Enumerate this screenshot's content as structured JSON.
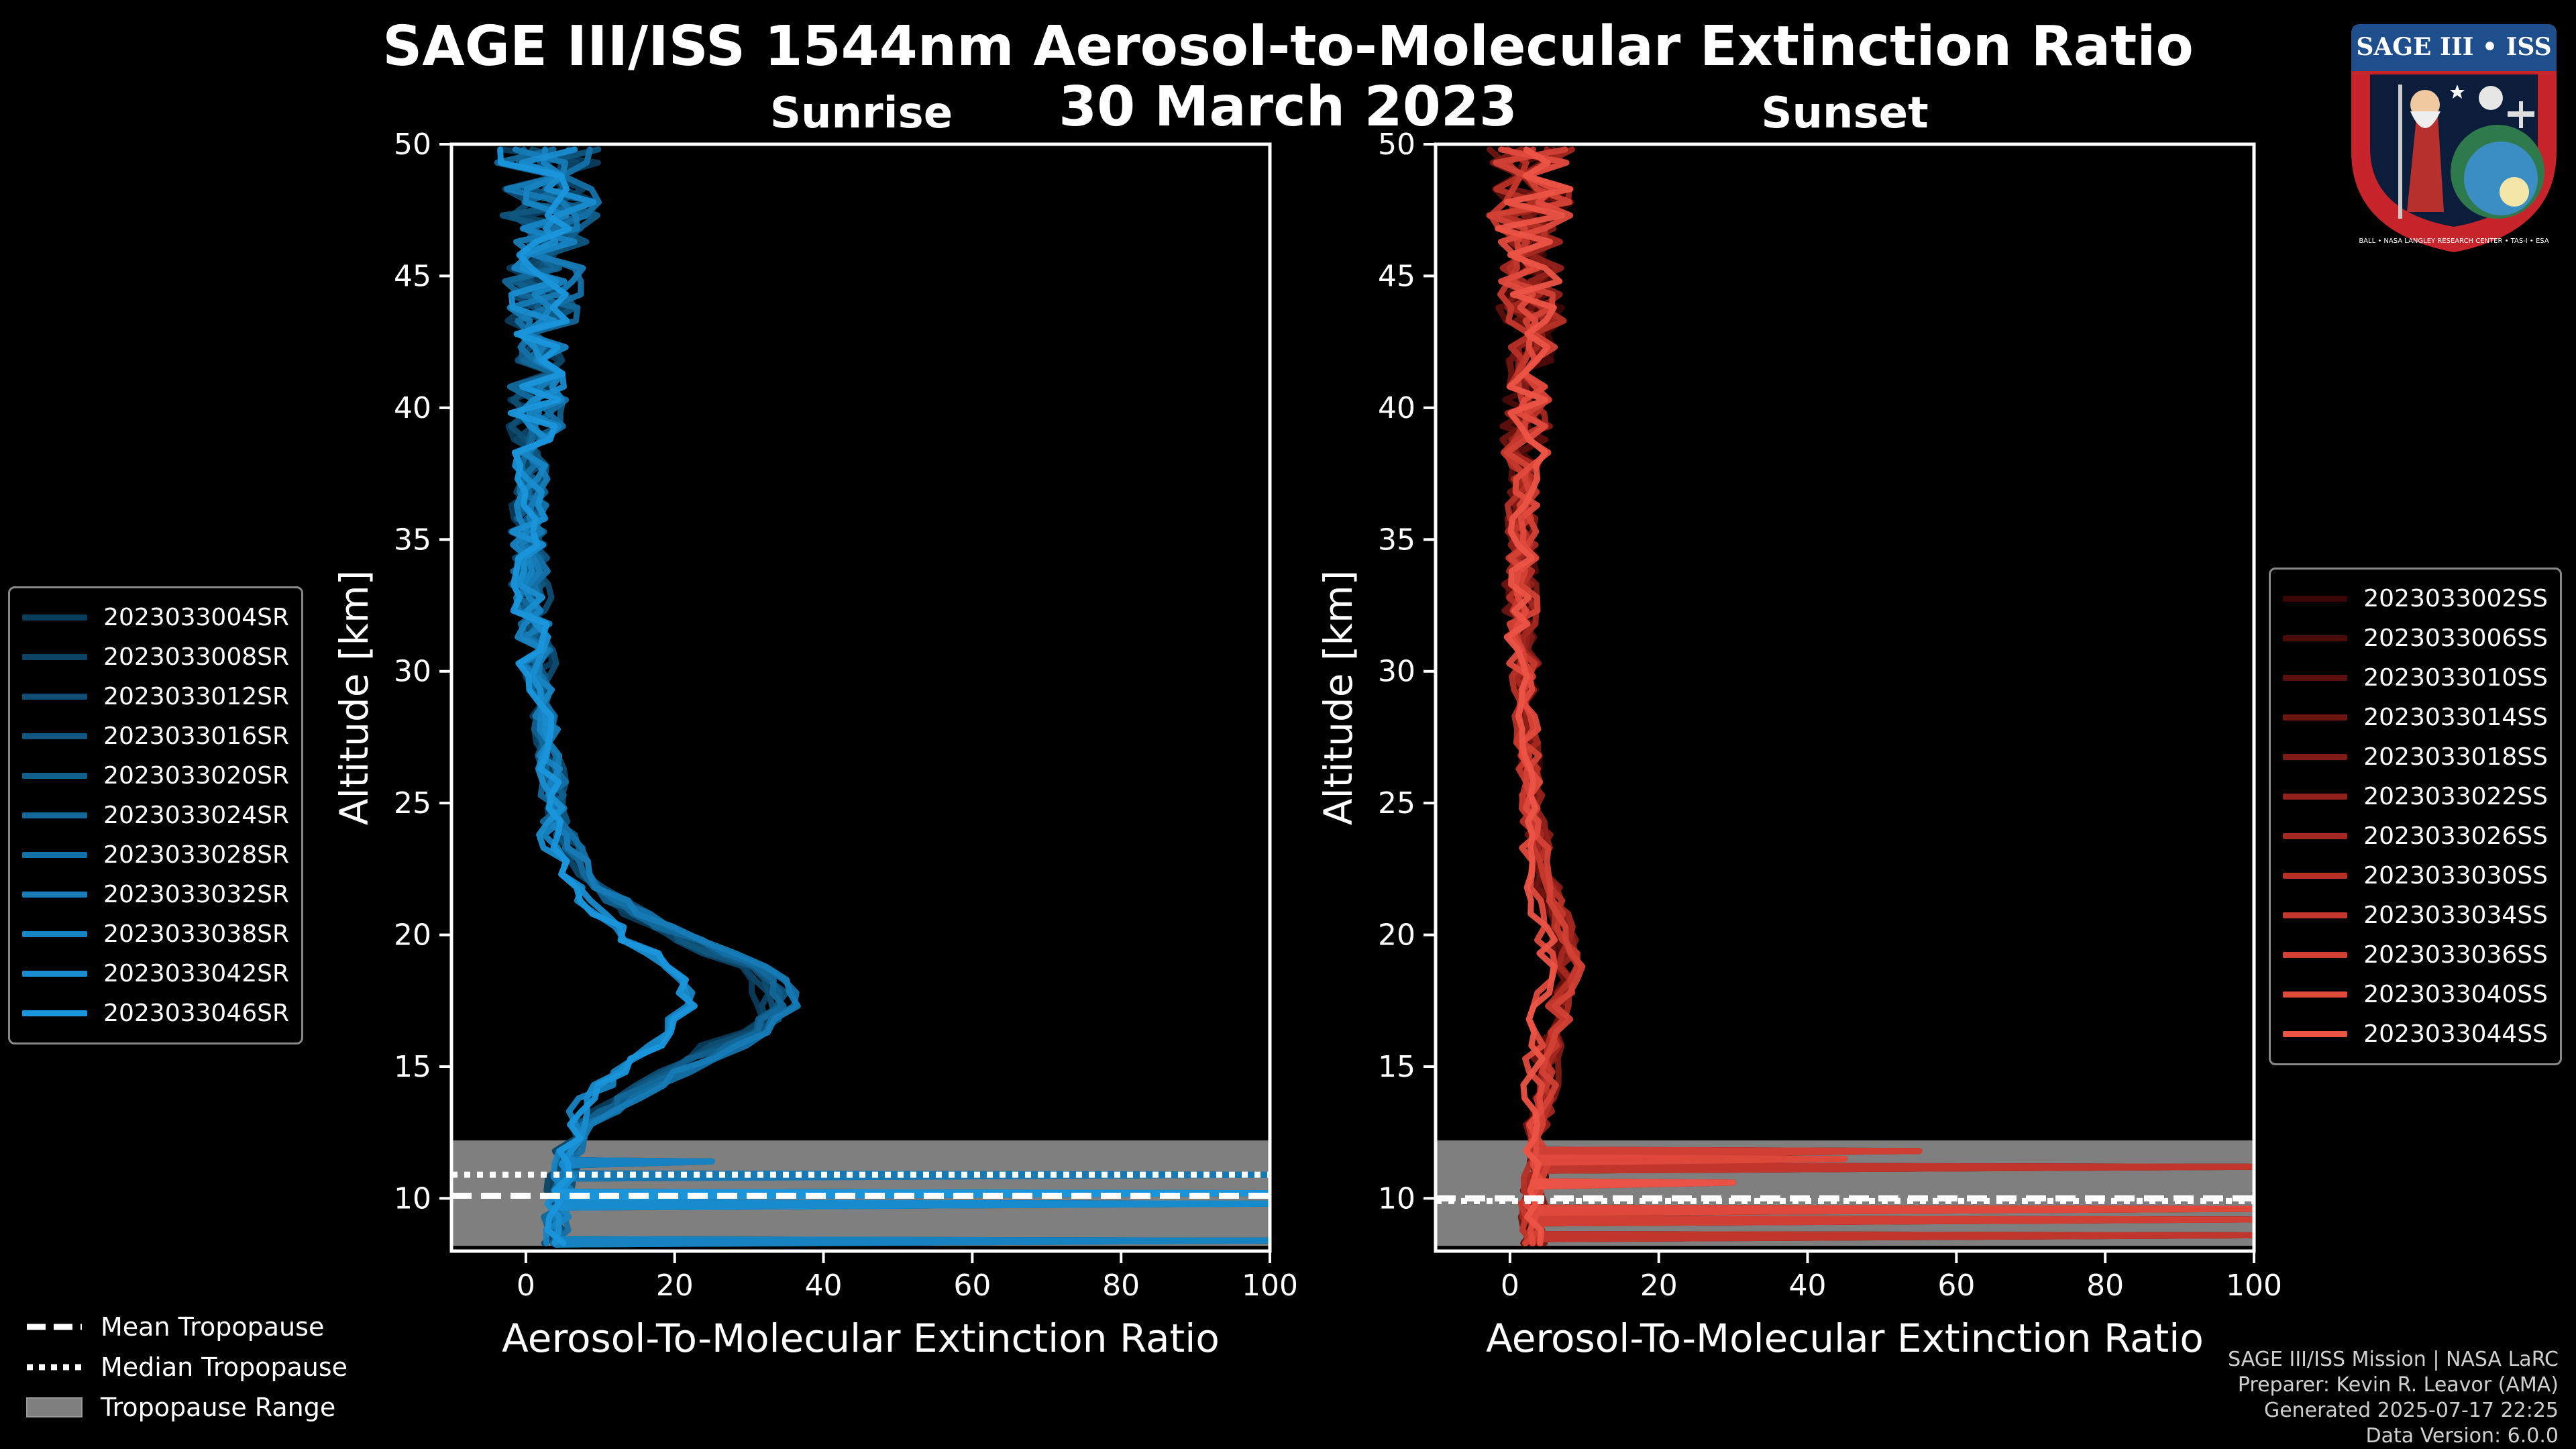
{
  "title": {
    "line1": "SAGE III/ISS 1544nm Aerosol-to-Molecular Extinction Ratio",
    "line2": "30 March 2023"
  },
  "logo": {
    "top_text": "SAGE III • ISS",
    "ring_text": "BALL • NASA LANGLEY RESEARCH CENTER • TAS-I • ESA",
    "ring_color": "#c8242b",
    "banner_color": "#1f4e8c"
  },
  "chart_data": [
    {
      "type": "line",
      "panel": "Sunrise",
      "title": "Sunrise",
      "xlabel": "Aerosol-To-Molecular Extinction Ratio",
      "ylabel": "Altitude [km]",
      "xlim": [
        -10,
        100
      ],
      "ylim": [
        8,
        50
      ],
      "xticks": [
        0,
        20,
        40,
        60,
        80,
        100
      ],
      "yticks": [
        10,
        15,
        20,
        25,
        30,
        35,
        40,
        45,
        50
      ],
      "tropopause_range": [
        8.2,
        12.2
      ],
      "mean_tropopause": 10.1,
      "median_tropopause": 10.9,
      "legend_position": "outside-left",
      "base_profile": [
        [
          8.2,
          4.0
        ],
        [
          9.0,
          4.0
        ],
        [
          10.0,
          4.5
        ],
        [
          11.0,
          5.0
        ],
        [
          12.0,
          6.0
        ],
        [
          13.0,
          8.0
        ],
        [
          14.0,
          12.0
        ],
        [
          15.0,
          17.0
        ],
        [
          15.8,
          22.0
        ],
        [
          16.5,
          26.0
        ],
        [
          17.2,
          28.0
        ],
        [
          18.0,
          28.0
        ],
        [
          18.8,
          25.0
        ],
        [
          19.5,
          20.0
        ],
        [
          20.5,
          14.0
        ],
        [
          21.5,
          9.0
        ],
        [
          22.5,
          6.0
        ],
        [
          24.0,
          4.0
        ],
        [
          26.0,
          3.5
        ],
        [
          28.0,
          2.5
        ],
        [
          30.0,
          1.5
        ],
        [
          32.0,
          1.0
        ],
        [
          34.0,
          0.5
        ],
        [
          36.0,
          0.5
        ],
        [
          38.0,
          1.0
        ],
        [
          40.0,
          1.5
        ],
        [
          42.0,
          2.0
        ],
        [
          43.5,
          2.0
        ],
        [
          45.0,
          2.5
        ],
        [
          46.5,
          3.0
        ],
        [
          48.0,
          3.0
        ],
        [
          49.5,
          3.0
        ]
      ],
      "noise": [
        1.6,
        2.4,
        3.6,
        5.2,
        7.0
      ],
      "spikes": [
        [
          8.4,
          100
        ],
        [
          9.8,
          100
        ],
        [
          10.2,
          100
        ],
        [
          10.9,
          100
        ],
        [
          11.4,
          25
        ]
      ],
      "series": [
        {
          "name": "2023033004SR",
          "color": "#0b3c5c"
        },
        {
          "name": "2023033008SR",
          "color": "#0d4466"
        },
        {
          "name": "2023033012SR",
          "color": "#0f4d73"
        },
        {
          "name": "2023033016SR",
          "color": "#105680"
        },
        {
          "name": "2023033020SR",
          "color": "#115f8d"
        },
        {
          "name": "2023033024SR",
          "color": "#13689a"
        },
        {
          "name": "2023033028SR",
          "color": "#1471a8"
        },
        {
          "name": "2023033032SR",
          "color": "#167bb6"
        },
        {
          "name": "2023033038SR",
          "color": "#1784c3"
        },
        {
          "name": "2023033042SR",
          "color": "#198dd0"
        },
        {
          "name": "2023033046SR",
          "color": "#1a96dc"
        }
      ]
    },
    {
      "type": "line",
      "panel": "Sunset",
      "title": "Sunset",
      "xlabel": "Aerosol-To-Molecular Extinction Ratio",
      "ylabel": "Altitude [km]",
      "xlim": [
        -10,
        100
      ],
      "ylim": [
        8,
        50
      ],
      "xticks": [
        0,
        20,
        40,
        60,
        80,
        100
      ],
      "yticks": [
        10,
        15,
        20,
        25,
        30,
        35,
        40,
        45,
        50
      ],
      "tropopause_range": [
        8.2,
        12.2
      ],
      "mean_tropopause": 10.0,
      "median_tropopause": 9.9,
      "legend_position": "outside-right",
      "base_profile": [
        [
          8.2,
          3.0
        ],
        [
          9.0,
          3.0
        ],
        [
          10.0,
          3.0
        ],
        [
          11.0,
          3.5
        ],
        [
          12.0,
          3.5
        ],
        [
          13.0,
          3.5
        ],
        [
          14.0,
          4.0
        ],
        [
          15.0,
          4.0
        ],
        [
          16.0,
          4.5
        ],
        [
          17.0,
          5.0
        ],
        [
          18.0,
          6.0
        ],
        [
          19.0,
          6.5
        ],
        [
          20.0,
          6.0
        ],
        [
          21.0,
          5.0
        ],
        [
          22.0,
          4.0
        ],
        [
          23.0,
          3.5
        ],
        [
          25.0,
          3.0
        ],
        [
          27.0,
          2.5
        ],
        [
          29.0,
          2.0
        ],
        [
          31.0,
          1.5
        ],
        [
          33.0,
          1.5
        ],
        [
          35.0,
          1.5
        ],
        [
          37.0,
          2.0
        ],
        [
          39.0,
          2.0
        ],
        [
          41.0,
          2.5
        ],
        [
          43.0,
          3.0
        ],
        [
          45.0,
          3.0
        ],
        [
          47.0,
          2.5
        ],
        [
          49.5,
          3.0
        ]
      ],
      "noise": [
        1.4,
        2.0,
        3.0,
        4.4,
        6.0
      ],
      "spikes": [
        [
          8.6,
          100
        ],
        [
          9.2,
          100
        ],
        [
          9.6,
          100
        ],
        [
          10.6,
          30
        ],
        [
          11.2,
          100
        ],
        [
          11.8,
          55
        ],
        [
          11.5,
          45
        ]
      ],
      "series": [
        {
          "name": "2023033002SS",
          "color": "#3a0706"
        },
        {
          "name": "2023033006SS",
          "color": "#4a0b09"
        },
        {
          "name": "2023033010SS",
          "color": "#5c100d"
        },
        {
          "name": "2023033014SS",
          "color": "#6e1511"
        },
        {
          "name": "2023033018SS",
          "color": "#801b16"
        },
        {
          "name": "2023033022SS",
          "color": "#92211b"
        },
        {
          "name": "2023033026SS",
          "color": "#a42820"
        },
        {
          "name": "2023033030SS",
          "color": "#b63026"
        },
        {
          "name": "2023033034SS",
          "color": "#c5382d"
        },
        {
          "name": "2023033036SS",
          "color": "#d34135"
        },
        {
          "name": "2023033040SS",
          "color": "#e04a3d"
        },
        {
          "name": "2023033044SS",
          "color": "#ec5446"
        }
      ]
    }
  ],
  "bottom_legend": {
    "mean": "Mean Tropopause",
    "median": "Median Tropopause",
    "range": "Tropopause Range"
  },
  "credits": {
    "line1": "SAGE III/ISS Mission | NASA LaRC",
    "line2": "Preparer: Kevin R. Leavor (AMA)",
    "line3": "Generated 2025-07-17 22:25",
    "line4": "Data Version: 6.0.0"
  },
  "colors": {
    "background": "#000000",
    "tropopause_band": "#7f7f7f",
    "axis": "#ffffff",
    "sunrise_accent": "#1a96dc",
    "sunset_accent": "#ec5446"
  }
}
